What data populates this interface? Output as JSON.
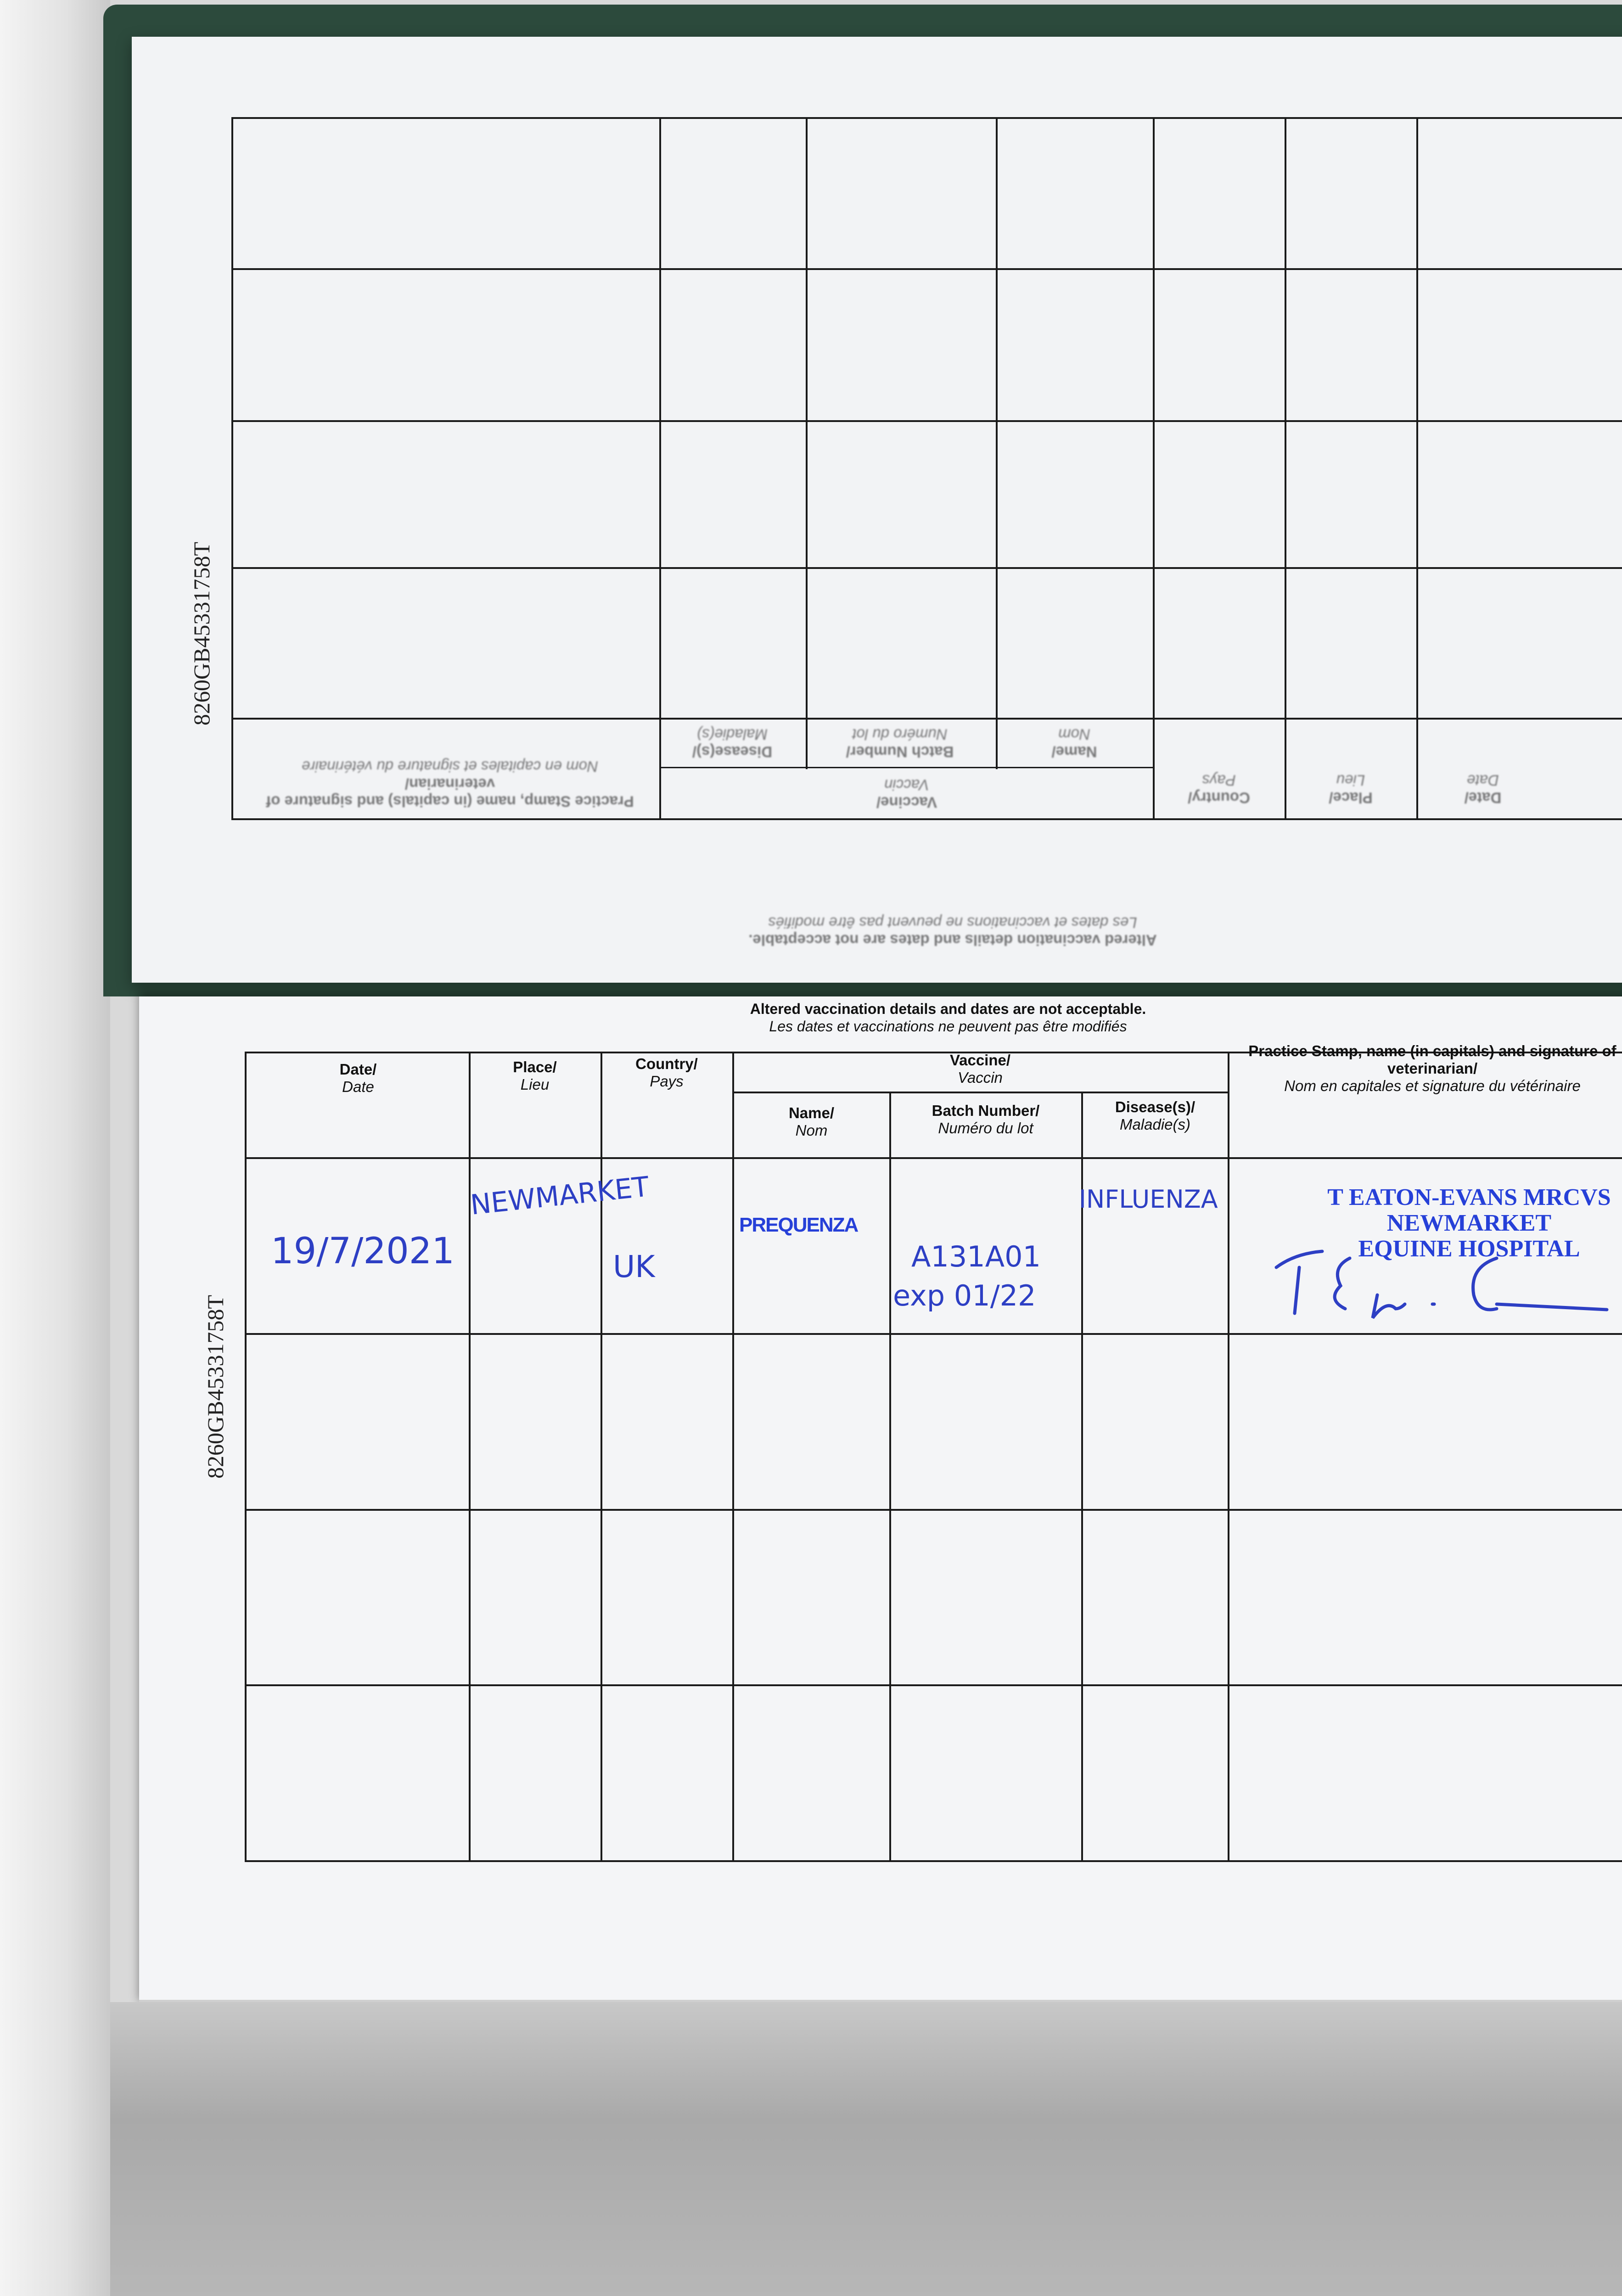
{
  "serial_number": "8260GB45331758T",
  "notice": {
    "en": "Altered vaccination details and dates are not acceptable.",
    "fr": "Les dates et vaccinations ne peuvent pas être modifiés"
  },
  "headers": {
    "date": {
      "en": "Date/",
      "fr": "Date"
    },
    "place": {
      "en": "Place/",
      "fr": "Lieu"
    },
    "country": {
      "en": "Country/",
      "fr": "Pays"
    },
    "vaccine": {
      "en": "Vaccine/",
      "fr": "Vaccin"
    },
    "name": {
      "en": "Name/",
      "fr": "Nom"
    },
    "batch": {
      "en": "Batch Number/",
      "fr": "Numéro du lot"
    },
    "disease": {
      "en": "Disease(s)/",
      "fr": "Maladie(s)"
    },
    "stamp": {
      "en": "Practice Stamp, name (in capitals) and signature of veterinarian/",
      "fr": "Nom en capitales et signature du vétérinaire"
    }
  },
  "entries": [
    {
      "date": "19/7/2021",
      "place": "NEWMARKET",
      "country": "UK",
      "vaccine_name": "PREQUENZA",
      "batch": "A131A01",
      "batch_expiry": "exp 01/22",
      "disease": "INFLUENZA",
      "stamp_lines": [
        "T EATON-EVANS MRCVS",
        "NEWMARKET",
        "EQUINE HOSPITAL"
      ],
      "signature": "T.E."
    }
  ],
  "colors": {
    "ink": "#2d3fc4",
    "stamp": "#2640d8",
    "cover": "#2c4a3c"
  }
}
